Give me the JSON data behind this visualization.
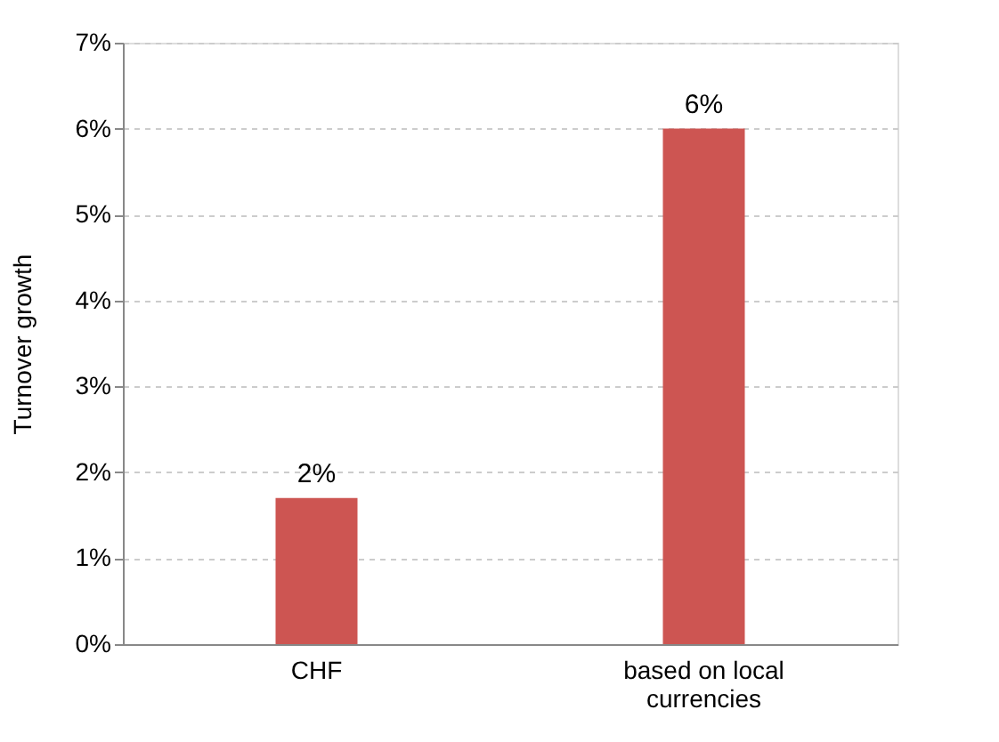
{
  "chart_data": {
    "type": "bar",
    "ylabel": "Turnover growth",
    "categories": [
      "CHF",
      "based on local\ncurrencies"
    ],
    "values": [
      1.7,
      6.0
    ],
    "value_labels": [
      "2%",
      "6%"
    ],
    "color": "#cd5552",
    "ylim": [
      0,
      7
    ],
    "yticks": [
      {
        "value": 0,
        "label": "0%"
      },
      {
        "value": 1,
        "label": "1%"
      },
      {
        "value": 2,
        "label": "2%"
      },
      {
        "value": 3,
        "label": "3%"
      },
      {
        "value": 4,
        "label": "4%"
      },
      {
        "value": 5,
        "label": "5%"
      },
      {
        "value": 6,
        "label": "6%"
      },
      {
        "value": 7,
        "label": "7%"
      }
    ],
    "grid": "y"
  }
}
